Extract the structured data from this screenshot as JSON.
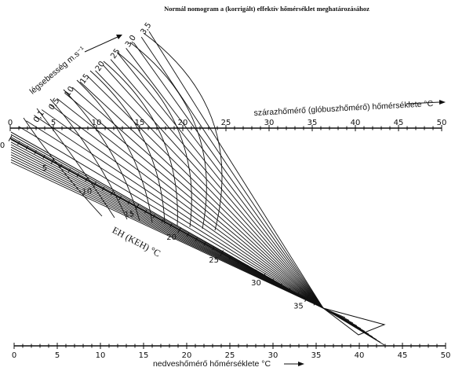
{
  "title": "Normál nomogram a (korrigált) effektív hőmérséklet meghatározásához",
  "dry_scale": {
    "label": "szárazhőmérő (glóbuszhőmérő) hőmérséklete °C",
    "ticks": [
      "0",
      "5",
      "10",
      "15",
      "20",
      "25",
      "30",
      "35",
      "40",
      "45",
      "50"
    ]
  },
  "wet_scale": {
    "label": "nedveshőmérő hőmérséklete °C",
    "ticks": [
      "0",
      "5",
      "10",
      "15",
      "20",
      "25",
      "30",
      "35",
      "40",
      "45",
      "50"
    ]
  },
  "eh_scale": {
    "label": "EH (KEH) °C",
    "ticks": [
      "0",
      "5",
      "10",
      "15",
      "20",
      "25",
      "30",
      "35"
    ]
  },
  "air_velocity": {
    "label": "légsebesség m.s⁻¹",
    "ticks": [
      "0,1",
      "0,5",
      "1,0",
      "1,5",
      "2,0",
      "2,5",
      "3,0",
      "3,5"
    ],
    "visible_labels": [
      "0,1",
      "0,5",
      "10",
      "15",
      "20",
      "25",
      "3,0",
      "3,5"
    ]
  },
  "colors": {
    "ink": "#111111",
    "paper": "#ffffff"
  }
}
